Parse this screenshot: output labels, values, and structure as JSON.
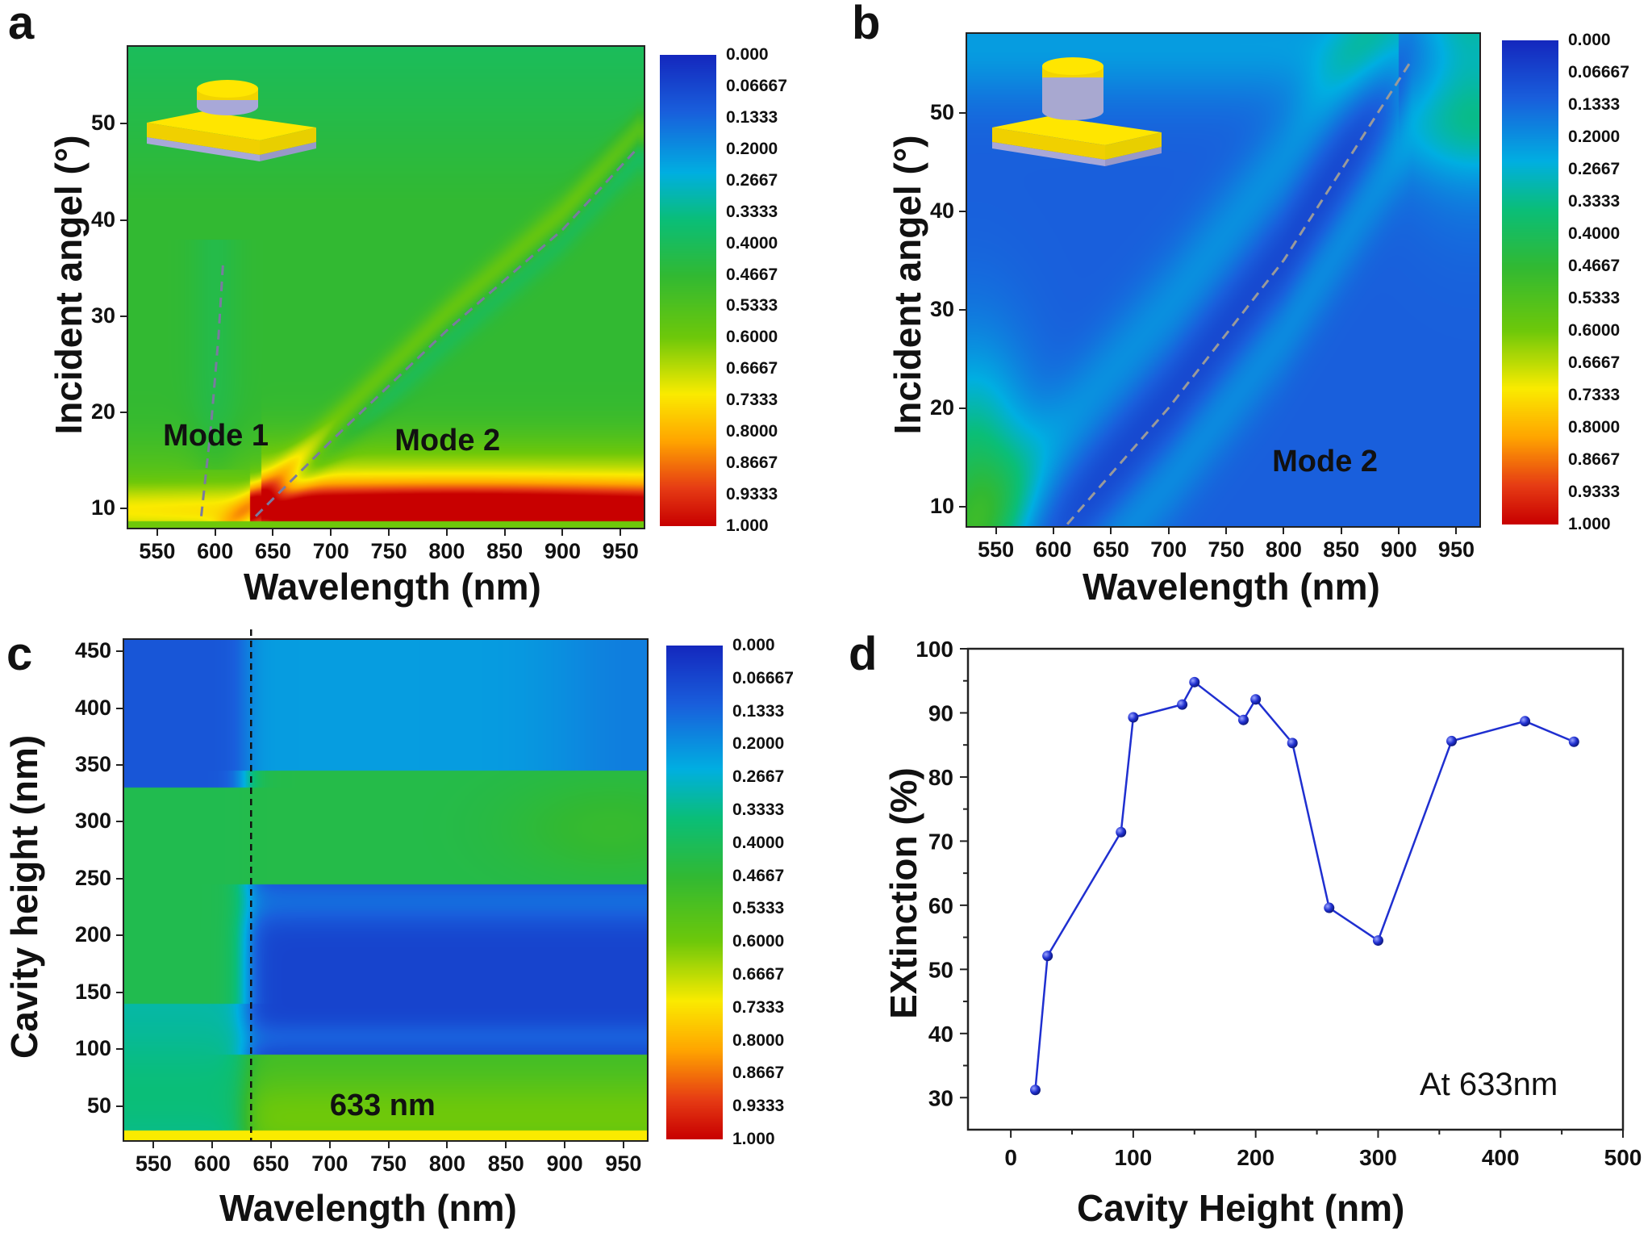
{
  "chart_data": [
    {
      "panel": "a",
      "type": "heatmap",
      "xlabel": "Wavelength (nm)",
      "ylabel": "Incident angel (°)",
      "xlim": [
        525,
        970
      ],
      "ylim": [
        8,
        58
      ],
      "xticks": [
        550,
        600,
        650,
        700,
        750,
        800,
        850,
        900,
        950
      ],
      "yticks": [
        10,
        20,
        30,
        40,
        50
      ],
      "colorbar": {
        "labels": [
          "0.000",
          "0.06667",
          "0.1333",
          "0.2000",
          "0.2667",
          "0.3333",
          "0.4000",
          "0.4667",
          "0.5333",
          "0.6000",
          "0.6667",
          "0.7333",
          "0.8000",
          "0.8667",
          "0.9333",
          "1.000"
        ],
        "range": [
          0,
          1
        ],
        "colormap": "blue-green-yellow-red"
      },
      "annotations": [
        {
          "text": "Mode 1",
          "x": 555,
          "y": 17.5
        },
        {
          "text": "Mode 2",
          "x": 755,
          "y": 17
        }
      ],
      "dashed_lines": [
        {
          "name": "mode-1",
          "points": [
            [
              588,
              9.2
            ],
            [
              596,
              18
            ],
            [
              603,
              28
            ],
            [
              607,
              35.8
            ]
          ]
        },
        {
          "name": "mode-2",
          "points": [
            [
              635,
              9.2
            ],
            [
              700,
              17
            ],
            [
              800,
              28.5
            ],
            [
              900,
              39
            ],
            [
              965,
              47.5
            ]
          ]
        }
      ],
      "inset": "single disk nanostructure on substrate (short cylinder)",
      "description": "High values (red, ~0.9-1.0) near 9-13° across 650-950 nm; green (~0.5) elsewhere; diagonal mode-2 band"
    },
    {
      "panel": "b",
      "type": "heatmap",
      "xlabel": "Wavelength (nm)",
      "ylabel": "Incident angel (°)",
      "xlim": [
        525,
        970
      ],
      "ylim": [
        8,
        58
      ],
      "xticks": [
        550,
        600,
        650,
        700,
        750,
        800,
        850,
        900,
        950
      ],
      "yticks": [
        10,
        20,
        30,
        40,
        50
      ],
      "colorbar": {
        "labels": [
          "0.000",
          "0.06667",
          "0.1333",
          "0.2000",
          "0.2667",
          "0.3333",
          "0.4000",
          "0.4667",
          "0.5333",
          "0.6000",
          "0.6667",
          "0.7333",
          "0.8000",
          "0.8667",
          "0.9333",
          "1.000"
        ],
        "range": [
          0,
          1
        ],
        "colormap": "blue-green-yellow-red"
      },
      "annotations": [
        {
          "text": "Mode 2",
          "x": 790,
          "y": 14.5
        }
      ],
      "dashed_lines": [
        {
          "name": "mode-2",
          "points": [
            [
              612,
              8.2
            ],
            [
              700,
              20
            ],
            [
              800,
              35
            ],
            [
              912,
              55.5
            ]
          ]
        }
      ],
      "inset": "tall pillar nanostructure on substrate (tall cylinder)",
      "description": "Mostly blue (~0.05-0.2) with dark diagonal band along mode 2; greener in lower-left and top-right corners"
    },
    {
      "panel": "c",
      "type": "heatmap",
      "xlabel": "Wavelength (nm)",
      "ylabel": "Cavity height (nm)",
      "xlim": [
        525,
        970
      ],
      "ylim": [
        20,
        460
      ],
      "xticks": [
        550,
        600,
        650,
        700,
        750,
        800,
        850,
        900,
        950
      ],
      "yticks": [
        50,
        100,
        150,
        200,
        250,
        300,
        350,
        400,
        450
      ],
      "colorbar": {
        "labels": [
          "0.000",
          "0.06667",
          "0.1333",
          "0.2000",
          "0.2667",
          "0.3333",
          "0.4000",
          "0.4667",
          "0.5333",
          "0.6000",
          "0.6667",
          "0.7333",
          "0.8000",
          "0.8667",
          "0.9333",
          "1.000"
        ],
        "range": [
          0,
          1
        ],
        "colormap": "blue-green-yellow-red"
      },
      "annotations": [
        {
          "text": "633 nm",
          "x": 700,
          "y": 50
        }
      ],
      "vertical_line": {
        "x": 633,
        "style": "dashed"
      },
      "description": "Dark blue band at 95-240 nm height for λ>630 nm; green band 250-340 nm; green at low heights; blue above 350 nm"
    },
    {
      "panel": "d",
      "type": "line",
      "title": "",
      "xlabel": "Cavity Height (nm)",
      "ylabel": "EXtinction (%)",
      "xlim": [
        -35,
        500
      ],
      "ylim": [
        25,
        100
      ],
      "xticks": [
        0,
        100,
        200,
        300,
        400,
        500
      ],
      "yticks": [
        30,
        40,
        50,
        60,
        70,
        80,
        90,
        100
      ],
      "grid": false,
      "annotation": "At 633nm",
      "annotation_position": "bottom-right",
      "series": [
        {
          "name": "Extinction at 633nm",
          "color": "#1f2fd0",
          "marker": "circle",
          "x": [
            20,
            30,
            90,
            100,
            140,
            150,
            190,
            200,
            230,
            260,
            300,
            360,
            420,
            460
          ],
          "y": [
            31.2,
            52.1,
            71.4,
            89.3,
            91.3,
            94.8,
            88.9,
            92.1,
            85.3,
            59.6,
            54.5,
            85.6,
            88.7,
            85.5
          ]
        }
      ]
    }
  ],
  "panels": {
    "a": {
      "letter": "a"
    },
    "b": {
      "letter": "b"
    },
    "c": {
      "letter": "c"
    },
    "d": {
      "letter": "d"
    }
  }
}
